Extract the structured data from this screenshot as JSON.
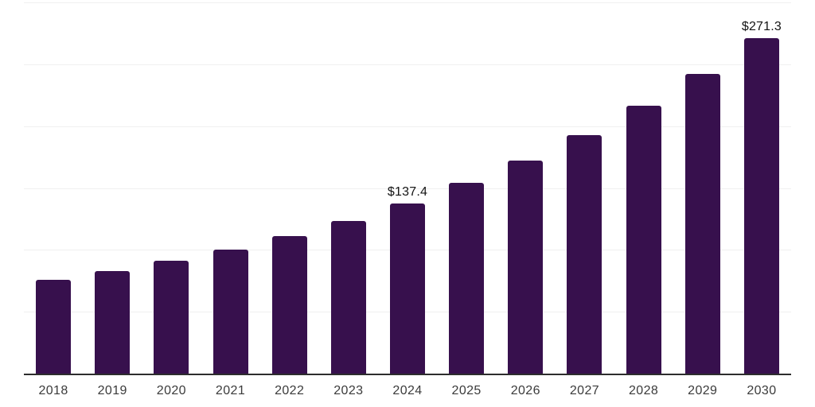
{
  "chart_data": {
    "type": "bar",
    "title": "",
    "xlabel": "",
    "ylabel": "",
    "categories": [
      "2018",
      "2019",
      "2020",
      "2021",
      "2022",
      "2023",
      "2024",
      "2025",
      "2026",
      "2027",
      "2028",
      "2029",
      "2030"
    ],
    "values": [
      76.0,
      83.1,
      91.4,
      100.4,
      111.2,
      123.4,
      137.4,
      154.0,
      172.2,
      192.8,
      216.4,
      242.1,
      271.3
    ],
    "data_labels": {
      "2024": "$137.4",
      "2030": "$271.3"
    },
    "ylim": [
      0,
      300
    ],
    "grid_step": 50,
    "grid": true,
    "legend": false,
    "y_axis_labels_visible": false,
    "colors": {
      "bar": "#37104D",
      "axis_line": "#2d2d2d",
      "gridline": "#f0f0f0",
      "tick_label": "#3b3b3b",
      "data_label": "#141414",
      "background": "#ffffff"
    }
  }
}
